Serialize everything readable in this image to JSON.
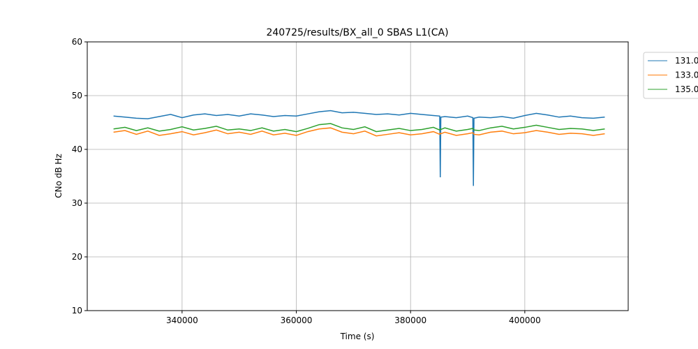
{
  "chart_data": {
    "type": "line",
    "title": "240725/results/BX_all_0 SBAS L1(CA)",
    "x_label": "Time (s)",
    "y_label": "CNo dB Hz",
    "x": [
      328000,
      330000,
      332000,
      334000,
      336000,
      338000,
      340000,
      342000,
      344000,
      346000,
      348000,
      350000,
      352000,
      354000,
      356000,
      358000,
      360000,
      362000,
      364000,
      366000,
      368000,
      370000,
      372000,
      374000,
      376000,
      378000,
      380000,
      382000,
      384000,
      385100,
      385200,
      385300,
      386000,
      388000,
      390000,
      390900,
      391000,
      391100,
      392000,
      394000,
      396000,
      398000,
      400000,
      402000,
      404000,
      406000,
      408000,
      410000,
      412000,
      414000
    ],
    "series": [
      {
        "name": "131.0",
        "color": "#1f77b4",
        "values": [
          46.2,
          46.0,
          45.8,
          45.7,
          46.1,
          46.5,
          45.9,
          46.4,
          46.6,
          46.3,
          46.5,
          46.2,
          46.6,
          46.4,
          46.1,
          46.3,
          46.2,
          46.6,
          47.0,
          47.2,
          46.8,
          46.9,
          46.7,
          46.5,
          46.6,
          46.4,
          46.7,
          46.5,
          46.3,
          46.2,
          34.8,
          46.0,
          46.1,
          45.9,
          46.2,
          45.9,
          33.2,
          45.8,
          46.0,
          45.9,
          46.1,
          45.8,
          46.3,
          46.7,
          46.4,
          46.0,
          46.2,
          45.9,
          45.8,
          46.0
        ]
      },
      {
        "name": "133.0",
        "color": "#ff7f0e",
        "values": [
          43.2,
          43.5,
          42.8,
          43.4,
          42.6,
          42.9,
          43.3,
          42.7,
          43.1,
          43.6,
          42.9,
          43.2,
          42.8,
          43.4,
          42.7,
          43.0,
          42.6,
          43.3,
          43.8,
          44.0,
          43.2,
          42.9,
          43.4,
          42.5,
          42.8,
          43.1,
          42.7,
          42.9,
          43.3,
          42.8,
          43.0,
          42.9,
          43.2,
          42.6,
          42.9,
          43.1,
          43.0,
          42.8,
          42.7,
          43.2,
          43.4,
          42.9,
          43.1,
          43.5,
          43.2,
          42.8,
          43.0,
          42.9,
          42.6,
          42.9
        ]
      },
      {
        "name": "135.0",
        "color": "#2ca02c",
        "values": [
          43.8,
          44.1,
          43.5,
          44.0,
          43.4,
          43.7,
          44.2,
          43.6,
          43.9,
          44.3,
          43.6,
          43.8,
          43.5,
          44.0,
          43.4,
          43.7,
          43.3,
          43.9,
          44.6,
          44.8,
          44.0,
          43.7,
          44.2,
          43.3,
          43.6,
          43.9,
          43.5,
          43.7,
          44.1,
          43.6,
          43.8,
          43.7,
          44.0,
          43.4,
          43.7,
          43.9,
          43.8,
          43.6,
          43.5,
          44.0,
          44.3,
          43.8,
          44.1,
          44.5,
          44.1,
          43.7,
          43.9,
          43.8,
          43.5,
          43.8
        ]
      }
    ],
    "xlim": [
      323400,
      418100
    ],
    "ylim": [
      10,
      60
    ],
    "xticks": [
      340000,
      360000,
      380000,
      400000
    ],
    "yticks": [
      10,
      20,
      30,
      40,
      50,
      60
    ],
    "grid": true,
    "legend": "upper right outside"
  }
}
